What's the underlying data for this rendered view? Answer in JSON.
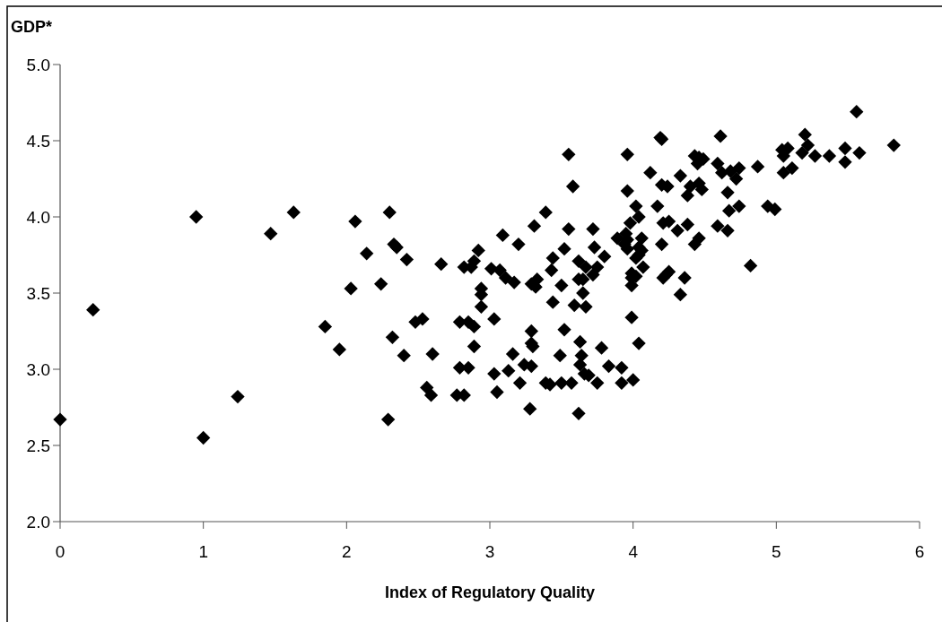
{
  "chart_data": {
    "type": "scatter",
    "ylabel": "GDP*",
    "xlabel": "Index of Regulatory Quality",
    "xlim": [
      0,
      6
    ],
    "xticks": [
      0,
      1,
      2,
      3,
      4,
      5,
      6
    ],
    "ylim": [
      2,
      5
    ],
    "yticks": [
      {
        "value": 2,
        "label": "2.0"
      },
      {
        "value": 2.5,
        "label": "2.5"
      },
      {
        "value": 3,
        "label": "3.0"
      },
      {
        "value": 3.5,
        "label": "3.5"
      },
      {
        "value": 4,
        "label": "4.0"
      },
      {
        "value": 4.5,
        "label": "4.5"
      },
      {
        "value": 5,
        "label": "5.0"
      }
    ],
    "marker": "diamond",
    "series": [
      {
        "color": "#000000",
        "x": [
          0.23,
          0.95,
          1.47,
          1.63,
          2.06,
          2.14,
          2.03,
          2.24,
          2.3,
          2.33,
          2.35,
          2.42,
          2.66,
          2.82,
          0.0,
          1.0,
          1.24,
          1.85,
          1.95,
          2.29,
          2.32,
          2.4,
          2.48,
          2.53,
          2.6,
          2.56,
          2.59,
          2.77,
          2.79,
          2.79,
          5.56,
          5.82,
          5.2,
          5.22,
          5.18,
          5.04,
          5.08,
          5.05,
          5.27,
          5.37,
          5.48,
          5.58,
          5.48,
          5.05,
          5.11,
          4.87,
          4.61,
          4.19,
          4.2,
          3.55,
          3.96,
          3.58,
          3.96,
          4.12,
          4.33,
          4.43,
          4.46,
          4.45,
          4.49,
          4.59,
          4.62,
          4.68,
          4.74,
          4.72,
          4.2,
          4.24,
          4.4,
          4.46,
          4.48,
          4.38,
          4.66,
          4.02,
          4.17,
          4.04,
          3.98,
          4.67,
          4.74,
          4.94,
          4.99,
          4.21,
          4.25,
          4.31,
          4.38,
          4.59,
          4.66,
          4.82,
          3.39,
          3.31,
          3.09,
          3.2,
          2.92,
          2.89,
          2.87,
          3.01,
          3.07,
          3.11,
          3.17,
          3.29,
          3.33,
          3.32,
          2.94,
          2.94,
          2.94,
          3.5,
          3.43,
          3.44,
          3.52,
          3.55,
          3.72,
          3.73,
          3.8,
          3.62,
          3.67,
          3.75,
          3.62,
          3.65,
          3.72,
          3.65,
          3.44,
          3.59,
          3.67,
          3.89,
          3.95,
          3.96,
          3.94,
          3.96,
          4.06,
          4.04,
          4.06,
          4.07,
          4.04,
          4.02,
          3.99,
          3.99,
          4.02,
          3.99,
          4.2,
          4.43,
          4.46,
          4.23,
          4.25,
          4.21,
          4.36,
          4.33,
          2.85,
          2.89,
          3.03,
          3.99,
          3.29,
          3.29,
          3.3,
          3.52,
          3.63,
          4.04,
          2.89,
          3.78,
          3.16,
          3.49,
          3.64,
          3.63,
          2.85,
          3.13,
          3.24,
          3.29,
          3.83,
          3.92,
          3.03,
          3.66,
          3.69,
          2.82,
          3.05,
          3.21,
          3.39,
          3.42,
          3.5,
          3.57,
          3.75,
          3.92,
          4.0,
          3.28,
          3.62
        ],
        "values": [
          3.39,
          4.0,
          3.89,
          4.03,
          3.97,
          3.76,
          3.53,
          3.56,
          4.03,
          3.82,
          3.8,
          3.72,
          3.69,
          3.67,
          2.67,
          2.55,
          2.82,
          3.28,
          3.13,
          2.67,
          3.21,
          3.09,
          3.31,
          3.33,
          3.1,
          2.88,
          2.83,
          2.83,
          3.01,
          3.31,
          4.69,
          4.47,
          4.54,
          4.47,
          4.42,
          4.44,
          4.45,
          4.4,
          4.4,
          4.4,
          4.45,
          4.42,
          4.36,
          4.29,
          4.32,
          4.33,
          4.53,
          4.52,
          4.51,
          4.41,
          4.41,
          4.2,
          4.17,
          4.29,
          4.27,
          4.4,
          4.39,
          4.35,
          4.38,
          4.35,
          4.29,
          4.3,
          4.32,
          4.25,
          4.21,
          4.2,
          4.2,
          4.22,
          4.18,
          4.14,
          4.16,
          4.07,
          4.07,
          4.0,
          3.96,
          4.04,
          4.07,
          4.07,
          4.05,
          3.96,
          3.97,
          3.91,
          3.95,
          3.94,
          3.91,
          3.68,
          4.03,
          3.94,
          3.88,
          3.82,
          3.78,
          3.71,
          3.67,
          3.66,
          3.65,
          3.6,
          3.57,
          3.56,
          3.59,
          3.54,
          3.53,
          3.49,
          3.41,
          3.55,
          3.65,
          3.73,
          3.79,
          3.92,
          3.92,
          3.8,
          3.74,
          3.71,
          3.67,
          3.67,
          3.59,
          3.59,
          3.62,
          3.5,
          3.44,
          3.42,
          3.41,
          3.86,
          3.89,
          3.85,
          3.82,
          3.79,
          3.86,
          3.8,
          3.78,
          3.67,
          3.75,
          3.73,
          3.63,
          3.6,
          3.61,
          3.55,
          3.82,
          3.82,
          3.86,
          3.62,
          3.64,
          3.6,
          3.6,
          3.49,
          3.31,
          3.28,
          3.33,
          3.34,
          3.25,
          3.17,
          3.15,
          3.26,
          3.18,
          3.17,
          3.15,
          3.14,
          3.1,
          3.09,
          3.09,
          3.03,
          3.01,
          2.99,
          3.03,
          3.02,
          3.02,
          3.01,
          2.97,
          2.97,
          2.96,
          2.83,
          2.85,
          2.91,
          2.91,
          2.9,
          2.91,
          2.91,
          2.91,
          2.91,
          2.93,
          2.74,
          2.71
        ]
      }
    ]
  }
}
